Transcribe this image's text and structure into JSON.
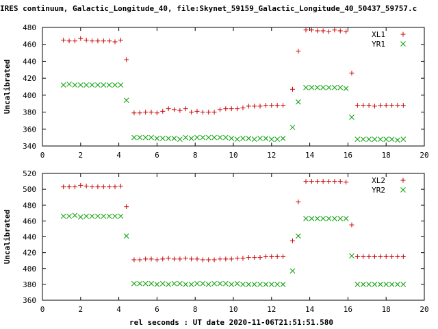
{
  "chart_data": {
    "type": "scatter",
    "title": "IRES continuum, Galactic_Longitude_40, file:Skynet_59159_Galactic_Longitude_40_50437_59757.c",
    "xlabel": "rel seconds : UT date 2020-11-06T21:51:51.580",
    "panels": [
      {
        "ylabel": "Uncalibrated",
        "xlim": [
          0,
          20
        ],
        "ylim": [
          340,
          480
        ],
        "xticks": [
          "0",
          "2",
          "4",
          "6",
          "8",
          "10",
          "12",
          "14",
          "16",
          "18",
          "20"
        ],
        "yticks": [
          "340",
          "360",
          "380",
          "400",
          "420",
          "440",
          "460",
          "480"
        ],
        "series": [
          {
            "name": "XL1",
            "marker": "+",
            "color": "#cc0000",
            "x": [
              1.1,
              1.4,
              1.7,
              2.0,
              2.3,
              2.6,
              2.9,
              3.2,
              3.5,
              3.8,
              4.1,
              4.4,
              4.8,
              5.1,
              5.4,
              5.7,
              6.0,
              6.3,
              6.6,
              6.9,
              7.2,
              7.5,
              7.8,
              8.1,
              8.4,
              8.7,
              9.0,
              9.3,
              9.6,
              9.9,
              10.2,
              10.5,
              10.8,
              11.1,
              11.4,
              11.7,
              12.0,
              12.3,
              12.6,
              13.1,
              13.4,
              13.8,
              14.1,
              14.4,
              14.7,
              15.0,
              15.3,
              15.6,
              15.9,
              16.2,
              16.5,
              16.8,
              17.1,
              17.4,
              17.7,
              18.0,
              18.3,
              18.6,
              18.9
            ],
            "y": [
              465,
              464,
              464,
              467,
              465,
              464,
              464,
              464,
              464,
              463,
              465,
              442,
              379,
              379,
              380,
              380,
              379,
              381,
              384,
              383,
              382,
              384,
              380,
              381,
              380,
              380,
              380,
              383,
              384,
              384,
              384,
              385,
              387,
              387,
              387,
              388,
              388,
              388,
              388,
              407,
              452,
              477,
              477,
              476,
              476,
              475,
              477,
              476,
              475,
              426,
              388,
              388,
              388,
              387,
              388,
              388,
              388,
              388,
              388
            ]
          },
          {
            "name": "YR1",
            "marker": "x",
            "color": "#00a000",
            "x": [
              1.1,
              1.4,
              1.7,
              2.0,
              2.3,
              2.6,
              2.9,
              3.2,
              3.5,
              3.8,
              4.1,
              4.4,
              4.8,
              5.1,
              5.4,
              5.7,
              6.0,
              6.3,
              6.6,
              6.9,
              7.2,
              7.5,
              7.8,
              8.1,
              8.4,
              8.7,
              9.0,
              9.3,
              9.6,
              9.9,
              10.2,
              10.5,
              10.8,
              11.1,
              11.4,
              11.7,
              12.0,
              12.3,
              12.6,
              13.1,
              13.4,
              13.8,
              14.1,
              14.4,
              14.7,
              15.0,
              15.3,
              15.6,
              15.9,
              16.2,
              16.5,
              16.8,
              17.1,
              17.4,
              17.7,
              18.0,
              18.3,
              18.6,
              18.9
            ],
            "y": [
              412,
              413,
              412,
              412,
              412,
              412,
              412,
              412,
              412,
              412,
              412,
              394,
              350,
              350,
              350,
              350,
              349,
              349,
              349,
              349,
              348,
              350,
              349,
              350,
              350,
              350,
              350,
              350,
              350,
              349,
              348,
              349,
              349,
              348,
              349,
              349,
              348,
              348,
              349,
              362,
              392,
              409,
              409,
              409,
              409,
              409,
              409,
              409,
              408,
              374,
              348,
              348,
              348,
              348,
              348,
              348,
              348,
              347,
              348
            ]
          }
        ]
      },
      {
        "ylabel": "Uncalibrated",
        "xlim": [
          0,
          20
        ],
        "ylim": [
          360,
          520
        ],
        "xticks": [
          "0",
          "2",
          "4",
          "6",
          "8",
          "10",
          "12",
          "14",
          "16",
          "18",
          "20"
        ],
        "yticks": [
          "360",
          "380",
          "400",
          "420",
          "440",
          "460",
          "480",
          "500",
          "520"
        ],
        "series": [
          {
            "name": "XL2",
            "marker": "+",
            "color": "#cc0000",
            "x": [
              1.1,
              1.4,
              1.7,
              2.0,
              2.3,
              2.6,
              2.9,
              3.2,
              3.5,
              3.8,
              4.1,
              4.4,
              4.8,
              5.1,
              5.4,
              5.7,
              6.0,
              6.3,
              6.6,
              6.9,
              7.2,
              7.5,
              7.8,
              8.1,
              8.4,
              8.7,
              9.0,
              9.3,
              9.6,
              9.9,
              10.2,
              10.5,
              10.8,
              11.1,
              11.4,
              11.7,
              12.0,
              12.3,
              12.6,
              13.1,
              13.4,
              13.8,
              14.1,
              14.4,
              14.7,
              15.0,
              15.3,
              15.6,
              15.9,
              16.2,
              16.5,
              16.8,
              17.1,
              17.4,
              17.7,
              18.0,
              18.3,
              18.6,
              18.9
            ],
            "y": [
              503,
              503,
              503,
              505,
              504,
              503,
              503,
              503,
              503,
              503,
              504,
              478,
              411,
              411,
              412,
              412,
              411,
              412,
              413,
              412,
              412,
              413,
              412,
              412,
              411,
              411,
              411,
              412,
              412,
              412,
              413,
              413,
              414,
              414,
              414,
              415,
              415,
              415,
              415,
              435,
              484,
              510,
              510,
              510,
              510,
              510,
              510,
              510,
              509,
              455,
              415,
              415,
              415,
              415,
              415,
              415,
              415,
              415,
              415
            ]
          },
          {
            "name": "YR2",
            "marker": "x",
            "color": "#00a000",
            "x": [
              1.1,
              1.4,
              1.7,
              2.0,
              2.3,
              2.6,
              2.9,
              3.2,
              3.5,
              3.8,
              4.1,
              4.4,
              4.8,
              5.1,
              5.4,
              5.7,
              6.0,
              6.3,
              6.6,
              6.9,
              7.2,
              7.5,
              7.8,
              8.1,
              8.4,
              8.7,
              9.0,
              9.3,
              9.6,
              9.9,
              10.2,
              10.5,
              10.8,
              11.1,
              11.4,
              11.7,
              12.0,
              12.3,
              12.6,
              13.1,
              13.4,
              13.8,
              14.1,
              14.4,
              14.7,
              15.0,
              15.3,
              15.6,
              15.9,
              16.2,
              16.5,
              16.8,
              17.1,
              17.4,
              17.7,
              18.0,
              18.3,
              18.6,
              18.9
            ],
            "y": [
              466,
              466,
              467,
              465,
              466,
              466,
              466,
              466,
              466,
              466,
              466,
              441,
              381,
              381,
              381,
              381,
              380,
              381,
              380,
              381,
              381,
              380,
              380,
              381,
              381,
              380,
              381,
              381,
              381,
              380,
              381,
              380,
              380,
              380,
              380,
              380,
              380,
              380,
              380,
              397,
              441,
              463,
              463,
              463,
              463,
              463,
              463,
              463,
              463,
              416,
              380,
              380,
              380,
              380,
              380,
              380,
              380,
              380,
              380
            ]
          }
        ]
      }
    ],
    "grid": false,
    "legend": "top-right"
  }
}
